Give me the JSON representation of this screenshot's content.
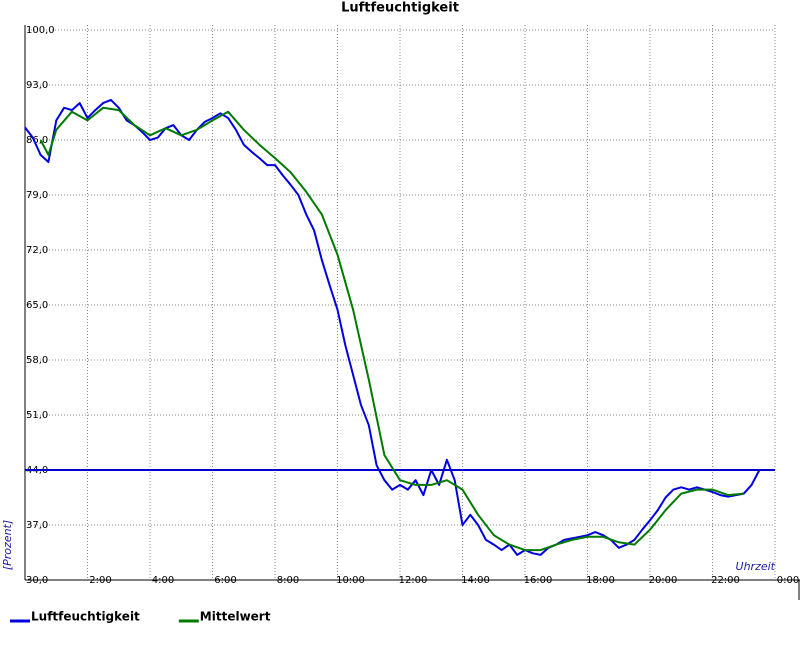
{
  "chart_data": {
    "type": "line",
    "title": "Luftfeuchtigkeit",
    "y_label": "[Prozent]",
    "x_label": "Uhrzeit",
    "xlim": [
      0,
      24
    ],
    "ylim": [
      30,
      100
    ],
    "xticks": [
      {
        "value": 2,
        "label": "2:00"
      },
      {
        "value": 4,
        "label": "4:00"
      },
      {
        "value": 6,
        "label": "6:00"
      },
      {
        "value": 8,
        "label": "8:00"
      },
      {
        "value": 10,
        "label": "10:00"
      },
      {
        "value": 12,
        "label": "12:00"
      },
      {
        "value": 14,
        "label": "14:00"
      },
      {
        "value": 16,
        "label": "16:00"
      },
      {
        "value": 18,
        "label": "18:00"
      },
      {
        "value": 20,
        "label": "20:00"
      },
      {
        "value": 22,
        "label": "22:00"
      },
      {
        "value": 24,
        "label": "0:00"
      }
    ],
    "yticks": [
      {
        "value": 30,
        "label": "30,0"
      },
      {
        "value": 37,
        "label": "37,0"
      },
      {
        "value": 44,
        "label": "44,0"
      },
      {
        "value": 51,
        "label": "51,0"
      },
      {
        "value": 58,
        "label": "58,0"
      },
      {
        "value": 65,
        "label": "65,0"
      },
      {
        "value": 72,
        "label": "72,0"
      },
      {
        "value": 79,
        "label": "79,0"
      },
      {
        "value": 86,
        "label": "86,0"
      },
      {
        "value": 93,
        "label": "93,0"
      },
      {
        "value": 100,
        "label": "100,0"
      }
    ],
    "grid": true,
    "reference_line": {
      "value": 44,
      "color": "#0000cc"
    },
    "series": [
      {
        "name": "Luftfeuchtigkeit",
        "color": "#0000e0",
        "x": [
          0,
          0.25,
          0.5,
          0.75,
          1,
          1.25,
          1.5,
          1.75,
          2,
          2.25,
          2.5,
          2.75,
          3,
          3.25,
          3.5,
          3.75,
          4,
          4.25,
          4.5,
          4.75,
          5,
          5.25,
          5.5,
          5.75,
          6,
          6.25,
          6.5,
          6.75,
          7,
          7.25,
          7.5,
          7.75,
          8,
          8.25,
          8.5,
          8.75,
          9,
          9.25,
          9.5,
          9.75,
          10,
          10.25,
          10.5,
          10.75,
          11,
          11.25,
          11.5,
          11.75,
          12,
          12.25,
          12.5,
          12.75,
          13,
          13.25,
          13.5,
          13.75,
          14,
          14.25,
          14.5,
          14.75,
          15,
          15.25,
          15.5,
          15.75,
          16,
          16.25,
          16.5,
          16.75,
          17,
          17.25,
          17.5,
          17.75,
          18,
          18.25,
          18.5,
          18.75,
          19,
          19.25,
          19.5,
          19.75,
          20,
          20.25,
          20.5,
          20.75,
          21,
          21.25,
          21.5,
          21.75,
          22,
          22.25,
          22.5,
          22.75,
          23,
          23.25,
          23.5
        ],
        "values": [
          87.6,
          86.3,
          84.1,
          83.2,
          88.5,
          90.1,
          89.8,
          90.7,
          88.8,
          89.8,
          90.7,
          91.1,
          90.1,
          88.5,
          87.9,
          87.0,
          86.0,
          86.3,
          87.5,
          87.9,
          86.6,
          86.0,
          87.3,
          88.3,
          88.8,
          89.4,
          88.8,
          87.3,
          85.4,
          84.5,
          83.7,
          82.8,
          82.8,
          81.5,
          80.3,
          79.0,
          76.5,
          74.5,
          70.7,
          67.5,
          64.4,
          59.9,
          56.1,
          52.3,
          49.7,
          44.6,
          42.7,
          41.5,
          42.1,
          41.5,
          42.7,
          40.8,
          44.0,
          42.1,
          45.3,
          42.7,
          37.0,
          38.3,
          37.0,
          35.1,
          34.5,
          33.8,
          34.5,
          33.2,
          33.8,
          33.4,
          33.2,
          34.1,
          34.5,
          35.1,
          35.3,
          35.5,
          35.7,
          36.1,
          35.7,
          35.1,
          34.1,
          34.5,
          35.1,
          36.4,
          37.6,
          38.9,
          40.5,
          41.5,
          41.8,
          41.5,
          41.8,
          41.5,
          41.2,
          40.8,
          40.6,
          40.8,
          41.0,
          42.1,
          44.0
        ]
      },
      {
        "name": "Mittelwert",
        "color": "#007a00",
        "x": [
          0.5,
          0.75,
          1,
          1.5,
          2,
          2.5,
          3,
          3.5,
          4,
          4.5,
          5,
          5.5,
          6,
          6.5,
          7,
          7.5,
          8,
          8.5,
          9,
          9.5,
          10,
          10.5,
          11,
          11.5,
          12,
          12.5,
          13,
          13.5,
          14,
          14.5,
          15,
          15.5,
          16,
          16.5,
          17,
          17.5,
          18,
          18.5,
          19,
          19.5,
          20,
          20.5,
          21,
          21.5,
          22,
          22.5,
          23
        ],
        "values": [
          86.0,
          84.1,
          87.3,
          89.6,
          88.5,
          90.1,
          89.8,
          87.9,
          86.6,
          87.5,
          86.6,
          87.3,
          88.5,
          89.6,
          87.3,
          85.4,
          83.7,
          81.9,
          79.4,
          76.5,
          71.4,
          64.4,
          55.5,
          45.9,
          42.7,
          42.1,
          42.1,
          42.7,
          41.5,
          38.3,
          35.7,
          34.5,
          33.8,
          33.8,
          34.5,
          35.1,
          35.5,
          35.5,
          34.8,
          34.5,
          36.4,
          38.9,
          41.0,
          41.5,
          41.5,
          40.8,
          41.0
        ]
      }
    ]
  }
}
